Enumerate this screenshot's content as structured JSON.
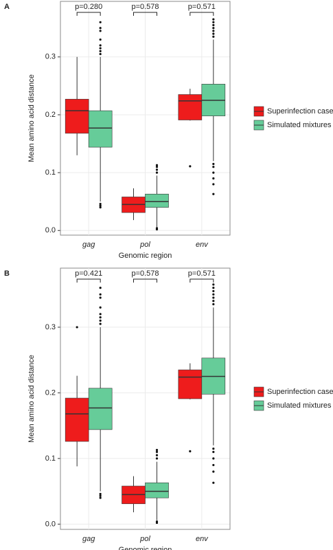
{
  "chart_data": [
    {
      "type": "box",
      "panel_label": "A",
      "x_label": "Genomic region",
      "y_label": "Mean amino acid distance",
      "categories": [
        "gag",
        "pol",
        "env"
      ],
      "annotations": [
        "p=0.280",
        "p=0.578",
        "p=0.571"
      ],
      "ylim": [
        -0.008,
        0.396
      ],
      "yticks": [
        {
          "value": 0,
          "label": "0.0"
        },
        0.1,
        0.2,
        0.3
      ],
      "grid": true,
      "series": [
        {
          "name": "Superinfection cases",
          "color": "#ee1c1c",
          "boxes": [
            {
              "low": 0.13,
              "q1": 0.168,
              "median": 0.207,
              "q3": 0.227,
              "high": 0.3,
              "outliers": []
            },
            {
              "low": 0.018,
              "q1": 0.031,
              "median": 0.045,
              "q3": 0.058,
              "high": 0.073,
              "outliers": []
            },
            {
              "low": 0.19,
              "q1": 0.191,
              "median": 0.224,
              "q3": 0.235,
              "high": 0.245,
              "outliers": [
                0.111
              ]
            }
          ]
        },
        {
          "name": "Simulated mixtures",
          "color": "#66cc99",
          "boxes": [
            {
              "low": 0.05,
              "q1": 0.144,
              "median": 0.177,
              "q3": 0.207,
              "high": 0.3,
              "outliers": [
                0.305,
                0.31,
                0.315,
                0.32,
                0.33,
                0.345,
                0.35,
                0.36,
                0.046,
                0.043,
                0.04
              ]
            },
            {
              "low": 0.006,
              "q1": 0.04,
              "median": 0.05,
              "q3": 0.063,
              "high": 0.095,
              "outliers": [
                0.1,
                0.105,
                0.11,
                0.113,
                0.004,
                0.002
              ]
            },
            {
              "low": 0.12,
              "q1": 0.198,
              "median": 0.225,
              "q3": 0.253,
              "high": 0.33,
              "outliers": [
                0.335,
                0.34,
                0.345,
                0.35,
                0.355,
                0.36,
                0.365,
                0.115,
                0.11,
                0.1,
                0.09,
                0.08,
                0.063
              ]
            }
          ]
        }
      ]
    },
    {
      "type": "box",
      "panel_label": "B",
      "x_label": "Genomic region",
      "y_label": "Mean amino acid distance",
      "categories": [
        "gag",
        "pol",
        "env"
      ],
      "annotations": [
        "p=0.421",
        "p=0.578",
        "p=0.571"
      ],
      "ylim": [
        -0.008,
        0.39
      ],
      "yticks": [
        {
          "value": 0,
          "label": "0.0"
        },
        0.1,
        0.2,
        0.3
      ],
      "grid": true,
      "series": [
        {
          "name": "Superinfection cases",
          "color": "#ee1c1c",
          "boxes": [
            {
              "low": 0.088,
              "q1": 0.126,
              "median": 0.168,
              "q3": 0.192,
              "high": 0.226,
              "outliers": [
                0.3
              ]
            },
            {
              "low": 0.018,
              "q1": 0.031,
              "median": 0.045,
              "q3": 0.058,
              "high": 0.073,
              "outliers": []
            },
            {
              "low": 0.19,
              "q1": 0.191,
              "median": 0.224,
              "q3": 0.235,
              "high": 0.245,
              "outliers": [
                0.111
              ]
            }
          ]
        },
        {
          "name": "Simulated mixtures",
          "color": "#66cc99",
          "boxes": [
            {
              "low": 0.05,
              "q1": 0.144,
              "median": 0.177,
              "q3": 0.207,
              "high": 0.3,
              "outliers": [
                0.305,
                0.31,
                0.315,
                0.32,
                0.33,
                0.345,
                0.35,
                0.36,
                0.046,
                0.043,
                0.04
              ]
            },
            {
              "low": 0.006,
              "q1": 0.04,
              "median": 0.05,
              "q3": 0.063,
              "high": 0.095,
              "outliers": [
                0.1,
                0.105,
                0.11,
                0.113,
                0.004,
                0.002
              ]
            },
            {
              "low": 0.12,
              "q1": 0.198,
              "median": 0.225,
              "q3": 0.253,
              "high": 0.33,
              "outliers": [
                0.335,
                0.34,
                0.345,
                0.35,
                0.355,
                0.36,
                0.365,
                0.115,
                0.11,
                0.1,
                0.09,
                0.08,
                0.063
              ]
            }
          ]
        }
      ]
    }
  ]
}
